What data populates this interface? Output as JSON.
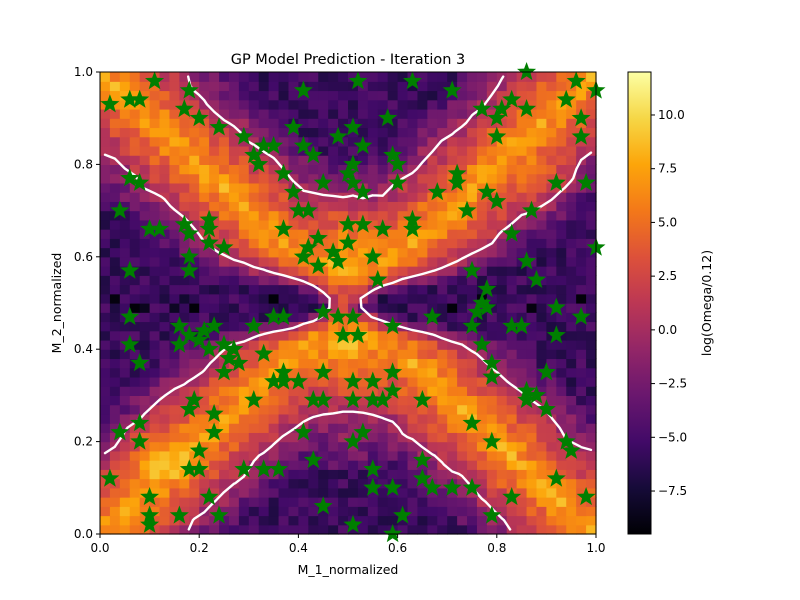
{
  "chart_data": {
    "type": "heatmap",
    "title": "GP Model Prediction - Iteration 3",
    "xlabel": "M_1_normalized",
    "ylabel": "M_2_normalized",
    "xlim": [
      0,
      1
    ],
    "ylim": [
      0,
      1
    ],
    "xticks": [
      "0.0",
      "0.2",
      "0.4",
      "0.6",
      "0.8",
      "1.0"
    ],
    "yticks": [
      "0.0",
      "0.2",
      "0.4",
      "0.6",
      "0.8",
      "1.0"
    ],
    "grid": false,
    "colormap": "inferno",
    "colorbar": {
      "label": "log(Omega/0.12)",
      "range": [
        -9.5,
        12
      ],
      "ticks": [
        "−7.5",
        "−5.0",
        "−2.5",
        "0.0",
        "2.5",
        "5.0",
        "7.5",
        "10.0"
      ]
    },
    "surface": {
      "description": "predicted log(Omega/0.12) over the unit square; high along the diagonals x=y and x=1-y, low near y=0.5",
      "grid_resolution": 50,
      "peak_value": 11.5,
      "min_value": -9.3
    },
    "contour": {
      "level": 0,
      "color": "#ffffff"
    },
    "markers": {
      "shape": "star",
      "color": "#007f00",
      "points": [
        [
          0.02,
          0.93
        ],
        [
          0.06,
          0.94
        ],
        [
          0.08,
          0.94
        ],
        [
          0.11,
          0.98
        ],
        [
          0.18,
          0.96
        ],
        [
          0.17,
          0.92
        ],
        [
          0.2,
          0.9
        ],
        [
          0.24,
          0.88
        ],
        [
          0.29,
          0.86
        ],
        [
          0.31,
          0.82
        ],
        [
          0.33,
          0.84
        ],
        [
          0.35,
          0.84
        ],
        [
          0.32,
          0.8
        ],
        [
          0.39,
          0.88
        ],
        [
          0.41,
          0.84
        ],
        [
          0.43,
          0.82
        ],
        [
          0.41,
          0.96
        ],
        [
          0.48,
          0.86
        ],
        [
          0.51,
          0.88
        ],
        [
          0.53,
          0.84
        ],
        [
          0.58,
          0.9
        ],
        [
          0.59,
          0.82
        ],
        [
          0.6,
          0.8
        ],
        [
          0.6,
          0.76
        ],
        [
          0.63,
          0.98
        ],
        [
          0.52,
          0.98
        ],
        [
          0.71,
          0.96
        ],
        [
          0.77,
          0.92
        ],
        [
          0.8,
          0.9
        ],
        [
          0.81,
          0.92
        ],
        [
          0.83,
          0.94
        ],
        [
          0.86,
          1.0
        ],
        [
          0.86,
          0.92
        ],
        [
          0.94,
          0.94
        ],
        [
          0.96,
          0.98
        ],
        [
          0.97,
          0.9
        ],
        [
          1.0,
          0.96
        ],
        [
          0.8,
          0.86
        ],
        [
          0.97,
          0.86
        ],
        [
          0.06,
          0.77
        ],
        [
          0.08,
          0.76
        ],
        [
          0.04,
          0.7
        ],
        [
          0.1,
          0.66
        ],
        [
          0.12,
          0.66
        ],
        [
          0.17,
          0.67
        ],
        [
          0.18,
          0.65
        ],
        [
          0.18,
          0.6
        ],
        [
          0.18,
          0.57
        ],
        [
          0.22,
          0.66
        ],
        [
          0.22,
          0.63
        ],
        [
          0.22,
          0.68
        ],
        [
          0.25,
          0.62
        ],
        [
          0.37,
          0.78
        ],
        [
          0.39,
          0.74
        ],
        [
          0.4,
          0.7
        ],
        [
          0.42,
          0.7
        ],
        [
          0.45,
          0.76
        ],
        [
          0.5,
          0.78
        ],
        [
          0.51,
          0.76
        ],
        [
          0.51,
          0.8
        ],
        [
          0.53,
          0.74
        ],
        [
          0.55,
          0.6
        ],
        [
          0.57,
          0.66
        ],
        [
          0.56,
          0.55
        ],
        [
          0.63,
          0.66
        ],
        [
          0.63,
          0.68
        ],
        [
          0.68,
          0.74
        ],
        [
          0.72,
          0.78
        ],
        [
          0.72,
          0.76
        ],
        [
          0.74,
          0.7
        ],
        [
          0.78,
          0.74
        ],
        [
          0.8,
          0.72
        ],
        [
          0.83,
          0.65
        ],
        [
          0.87,
          0.7
        ],
        [
          0.92,
          0.76
        ],
        [
          0.98,
          0.76
        ],
        [
          1.0,
          0.62
        ],
        [
          0.37,
          0.66
        ],
        [
          0.42,
          0.62
        ],
        [
          0.44,
          0.64
        ],
        [
          0.47,
          0.61
        ],
        [
          0.5,
          0.63
        ],
        [
          0.5,
          0.67
        ],
        [
          0.53,
          0.67
        ],
        [
          0.41,
          0.6
        ],
        [
          0.44,
          0.58
        ],
        [
          0.48,
          0.59
        ],
        [
          0.06,
          0.57
        ],
        [
          0.06,
          0.47
        ],
        [
          0.06,
          0.41
        ],
        [
          0.08,
          0.37
        ],
        [
          0.16,
          0.45
        ],
        [
          0.16,
          0.41
        ],
        [
          0.18,
          0.43
        ],
        [
          0.2,
          0.42
        ],
        [
          0.21,
          0.44
        ],
        [
          0.22,
          0.4
        ],
        [
          0.23,
          0.45
        ],
        [
          0.25,
          0.41
        ],
        [
          0.26,
          0.38
        ],
        [
          0.27,
          0.4
        ],
        [
          0.25,
          0.35
        ],
        [
          0.28,
          0.37
        ],
        [
          0.31,
          0.45
        ],
        [
          0.33,
          0.39
        ],
        [
          0.35,
          0.47
        ],
        [
          0.37,
          0.47
        ],
        [
          0.45,
          0.48
        ],
        [
          0.48,
          0.47
        ],
        [
          0.49,
          0.43
        ],
        [
          0.51,
          0.47
        ],
        [
          0.52,
          0.43
        ],
        [
          0.59,
          0.45
        ],
        [
          0.67,
          0.47
        ],
        [
          0.75,
          0.45
        ],
        [
          0.76,
          0.48
        ],
        [
          0.77,
          0.5
        ],
        [
          0.78,
          0.49
        ],
        [
          0.77,
          0.41
        ],
        [
          0.75,
          0.57
        ],
        [
          0.78,
          0.53
        ],
        [
          0.83,
          0.45
        ],
        [
          0.85,
          0.45
        ],
        [
          0.86,
          0.59
        ],
        [
          0.88,
          0.55
        ],
        [
          0.92,
          0.49
        ],
        [
          0.92,
          0.43
        ],
        [
          0.97,
          0.47
        ],
        [
          0.79,
          0.37
        ],
        [
          0.79,
          0.34
        ],
        [
          0.86,
          0.29
        ],
        [
          0.88,
          0.3
        ],
        [
          0.9,
          0.35
        ],
        [
          0.04,
          0.22
        ],
        [
          0.08,
          0.24
        ],
        [
          0.08,
          0.2
        ],
        [
          0.02,
          0.12
        ],
        [
          0.1,
          0.08
        ],
        [
          0.1,
          0.04
        ],
        [
          0.1,
          0.02
        ],
        [
          0.16,
          0.04
        ],
        [
          0.18,
          0.14
        ],
        [
          0.2,
          0.14
        ],
        [
          0.2,
          0.18
        ],
        [
          0.18,
          0.27
        ],
        [
          0.19,
          0.29
        ],
        [
          0.23,
          0.26
        ],
        [
          0.23,
          0.22
        ],
        [
          0.22,
          0.08
        ],
        [
          0.24,
          0.04
        ],
        [
          0.29,
          0.14
        ],
        [
          0.31,
          0.29
        ],
        [
          0.33,
          0.14
        ],
        [
          0.36,
          0.14
        ],
        [
          0.35,
          0.33
        ],
        [
          0.37,
          0.33
        ],
        [
          0.37,
          0.35
        ],
        [
          0.4,
          0.33
        ],
        [
          0.41,
          0.22
        ],
        [
          0.43,
          0.16
        ],
        [
          0.43,
          0.29
        ],
        [
          0.45,
          0.29
        ],
        [
          0.45,
          0.35
        ],
        [
          0.45,
          0.06
        ],
        [
          0.51,
          0.33
        ],
        [
          0.51,
          0.29
        ],
        [
          0.51,
          0.2
        ],
        [
          0.51,
          0.02
        ],
        [
          0.53,
          0.22
        ],
        [
          0.55,
          0.33
        ],
        [
          0.55,
          0.29
        ],
        [
          0.55,
          0.14
        ],
        [
          0.55,
          0.1
        ],
        [
          0.57,
          0.29
        ],
        [
          0.59,
          0.31
        ],
        [
          0.59,
          0.35
        ],
        [
          0.59,
          0.1
        ],
        [
          0.59,
          0.0
        ],
        [
          0.61,
          0.04
        ],
        [
          0.65,
          0.29
        ],
        [
          0.65,
          0.16
        ],
        [
          0.65,
          0.12
        ],
        [
          0.67,
          0.1
        ],
        [
          0.71,
          0.1
        ],
        [
          0.75,
          0.1
        ],
        [
          0.75,
          0.24
        ],
        [
          0.79,
          0.2
        ],
        [
          0.79,
          0.04
        ],
        [
          0.83,
          0.08
        ],
        [
          0.86,
          0.31
        ],
        [
          0.94,
          0.2
        ],
        [
          0.95,
          0.18
        ],
        [
          0.92,
          0.12
        ],
        [
          0.98,
          0.08
        ],
        [
          0.9,
          0.27
        ]
      ]
    }
  }
}
